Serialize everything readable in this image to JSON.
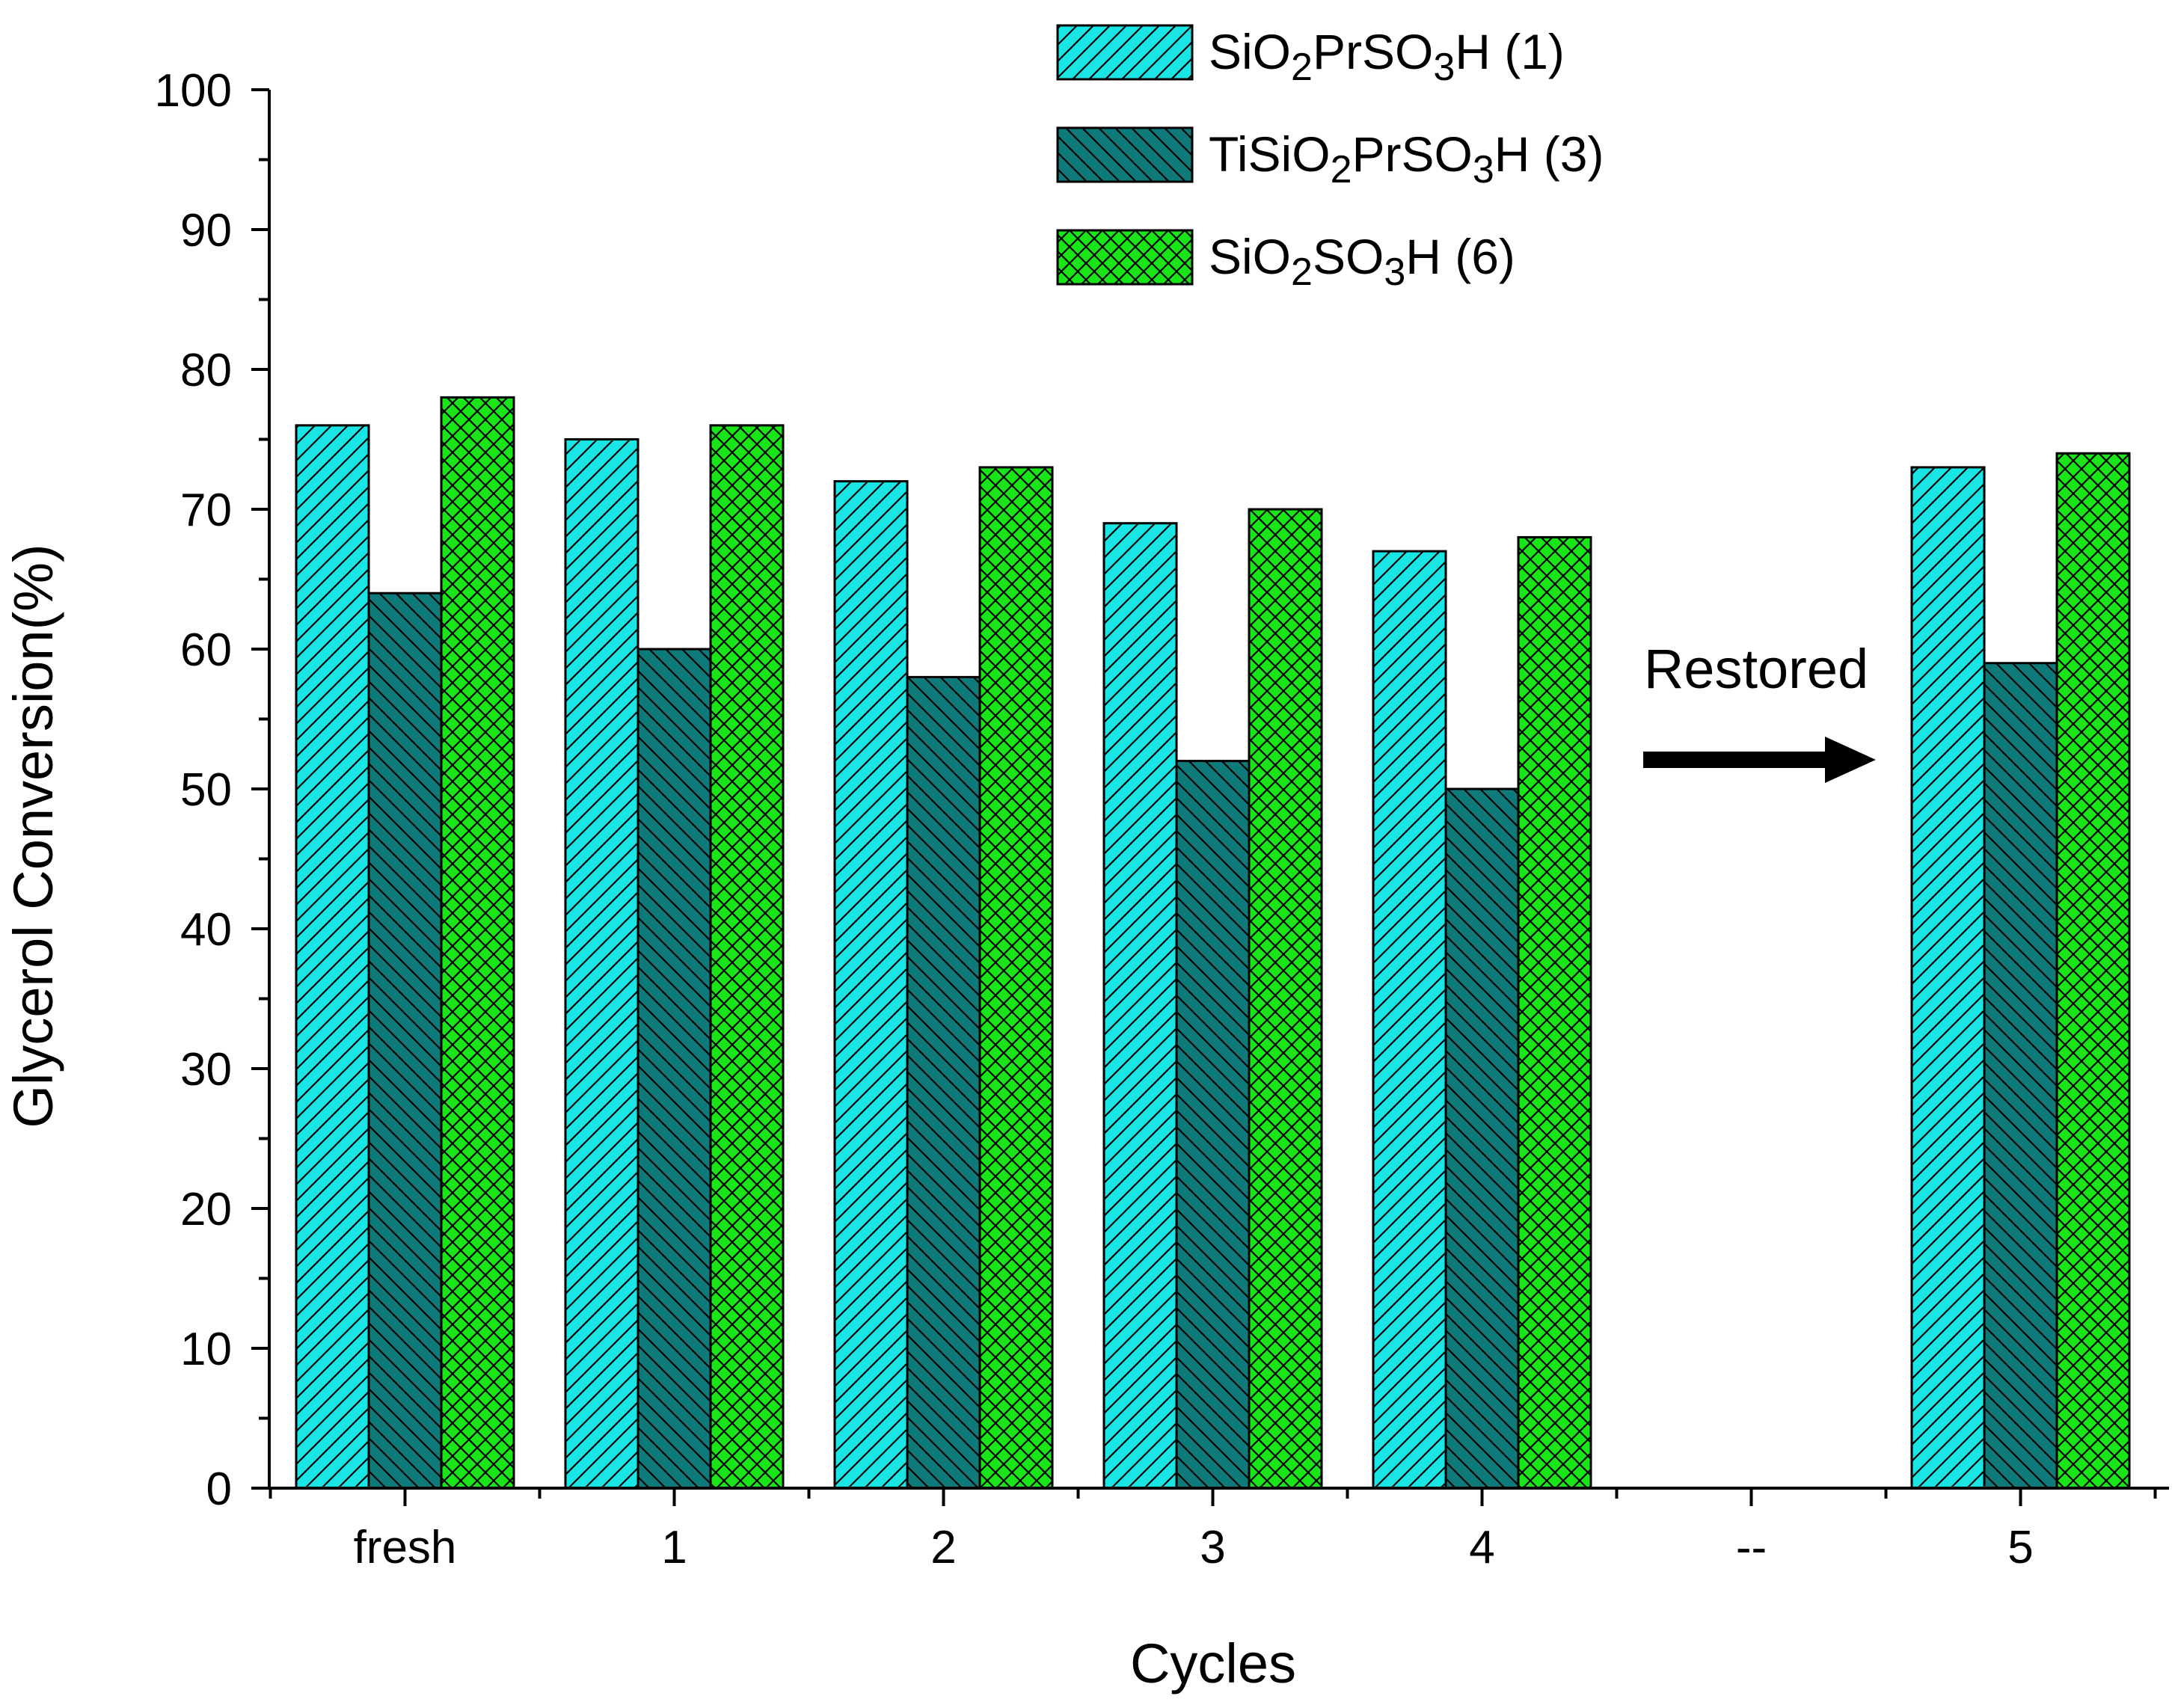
{
  "chart_data": {
    "type": "bar",
    "title": "",
    "xlabel": "Cycles",
    "ylabel": "Glycerol Conversion(%)",
    "ylim": [
      0,
      100
    ],
    "yticks": [
      "0",
      "10",
      "20",
      "30",
      "40",
      "50",
      "60",
      "70",
      "80",
      "90",
      "100"
    ],
    "categories": [
      "fresh",
      "1",
      "2",
      "3",
      "4",
      "--",
      "5"
    ],
    "series": [
      {
        "name": "SiO2PrSO3H (1)",
        "label": {
          "parts": [
            {
              "t": "SiO",
              "sub": false
            },
            {
              "t": "2",
              "sub": true
            },
            {
              "t": "PrSO",
              "sub": false
            },
            {
              "t": "3",
              "sub": true
            },
            {
              "t": "H (1)",
              "sub": false
            }
          ]
        },
        "color": "#19E5E5",
        "pattern": "diag-up",
        "values": [
          76,
          75,
          72,
          69,
          67,
          null,
          73
        ]
      },
      {
        "name": "TiSiO2PrSO3H (3)",
        "label": {
          "parts": [
            {
              "t": "TiSiO",
              "sub": false
            },
            {
              "t": "2",
              "sub": true
            },
            {
              "t": "PrSO",
              "sub": false
            },
            {
              "t": "3",
              "sub": true
            },
            {
              "t": "H (3)",
              "sub": false
            }
          ]
        },
        "color": "#0F7A7A",
        "pattern": "diag-down",
        "values": [
          64,
          60,
          58,
          52,
          50,
          null,
          59
        ]
      },
      {
        "name": "SiO2SO3H (6)",
        "label": {
          "parts": [
            {
              "t": "SiO",
              "sub": false
            },
            {
              "t": "2",
              "sub": true
            },
            {
              "t": "SO",
              "sub": false
            },
            {
              "t": "3",
              "sub": true
            },
            {
              "t": "H (6)",
              "sub": false
            }
          ]
        },
        "color": "#19E519",
        "pattern": "cross",
        "values": [
          78,
          76,
          73,
          70,
          68,
          null,
          74
        ]
      }
    ],
    "legend_position": "top-center",
    "annotations": [
      {
        "text": "Restored",
        "arrow": "right"
      }
    ]
  }
}
